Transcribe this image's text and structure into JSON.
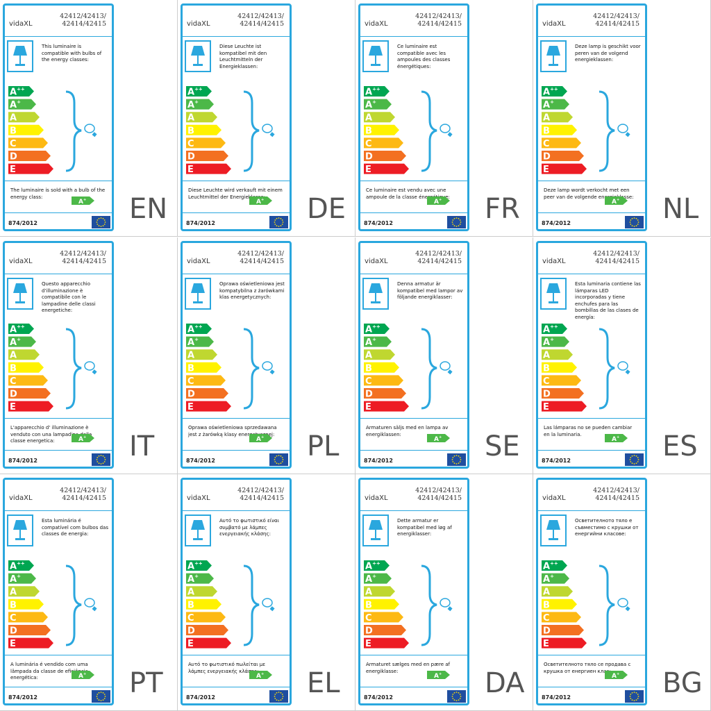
{
  "energy_classes": [
    {
      "letter": "A",
      "sup": "++",
      "color": "#00a651"
    },
    {
      "letter": "A",
      "sup": "+",
      "color": "#4cb848"
    },
    {
      "letter": "A",
      "color": "#bfd730"
    },
    {
      "letter": "B",
      "color": "#fff200"
    },
    {
      "letter": "C",
      "color": "#fdb913"
    },
    {
      "letter": "D",
      "color": "#f37021"
    },
    {
      "letter": "E",
      "color": "#ed1c24"
    }
  ],
  "labels": [
    {
      "code": "EN",
      "brand": "vidaXL",
      "model": [
        "42412/42413/",
        "42414/42415"
      ],
      "compatible_text": "This luminaire is compatible with bulbs of the energy classes:",
      "sold_text": "The luminaire is sold with a bulb of the energy class:",
      "sold_class": {
        "letter": "A",
        "sup": "+"
      },
      "regulation": "874/2012"
    },
    {
      "code": "DE",
      "brand": "vidaXL",
      "model": [
        "42412/42413/",
        "42414/42415"
      ],
      "compatible_text": "Diese Leuchte ist kompatibel mit den Leuchtmitteln der Energieklassen:",
      "sold_text": "Diese Leuchte wird verkauft mit einem Leuchtmittel der Energieklasse:",
      "sold_class": {
        "letter": "A",
        "sup": "+"
      },
      "regulation": "874/2012"
    },
    {
      "code": "FR",
      "brand": "vidaXL",
      "model": [
        "42412/42413/",
        "42414/42415"
      ],
      "compatible_text": "Ce luminaire est compatible avec les ampoules des classes énergétiques:",
      "sold_text": "Ce luminaire est vendu avec une ampoule de la classe énergétique:",
      "sold_class": {
        "letter": "A",
        "sup": "+"
      },
      "regulation": "874/2012"
    },
    {
      "code": "NL",
      "brand": "vidaXL",
      "model": [
        "42412/42413/",
        "42414/42415"
      ],
      "compatible_text": "Deze lamp is geschikt voor peren van de volgend energieklassen:",
      "sold_text": "Deze lamp wordt verkocht met een peer van de volgende energieklasse:",
      "sold_class": {
        "letter": "A",
        "sup": "+"
      },
      "regulation": "874/2012"
    },
    {
      "code": "IT",
      "brand": "vidaXL",
      "model": [
        "42412/42413/",
        "42414/42415"
      ],
      "compatible_text": "Questo apparecchio d'illuminazione è compatibile con le lampadine delle classi energetiche:",
      "sold_text": "L'apparecchio d'  illuminazione è venduto con una lampadina della classe energetica:",
      "sold_class": {
        "letter": "A",
        "sup": "+"
      },
      "regulation": "874/2012"
    },
    {
      "code": "PL",
      "brand": "vidaXL",
      "model": [
        "42412/42413/",
        "42414/42415"
      ],
      "compatible_text": "Oprawa oświetleniowa jest kompatybilna z żarówkami klas energetycznych:",
      "sold_text": "Oprawa oświetleniowa sprzedawana jest z żarówką klasy energetycznej:",
      "sold_class": {
        "letter": "A",
        "sup": "+"
      },
      "regulation": "874/2012"
    },
    {
      "code": "SE",
      "brand": "vidaXL",
      "model": [
        "42412/42413/",
        "42414/42415"
      ],
      "compatible_text": "Denna armatur är kompatibel med lampor av följande energiklasser:",
      "sold_text": "Armaturen säljs med en lampa av energiklassen:",
      "sold_class": {
        "letter": "A",
        "sup": "+"
      },
      "regulation": "874/2012"
    },
    {
      "code": "ES",
      "brand": "vidaXL",
      "model": [
        "42412/42413/",
        "42414/42415"
      ],
      "compatible_text": "Esta luminaria contiene las lámparas LED incorporadas y tiene enchufes para las bombillas de las clases de energía:",
      "sold_text": "Las lámparas no se pueden cambiar en la luminaria.",
      "sold_class": {
        "letter": "A",
        "sup": "+"
      },
      "regulation": "874/2012"
    },
    {
      "code": "PT",
      "brand": "vidaXL",
      "model": [
        "42412/42413/",
        "42414/42415"
      ],
      "compatible_text": "Esta luminária é compatível com bulbos das classes de energia:",
      "sold_text": "A luminária é vendido com uma lâmpada da classe de eficiência energética:",
      "sold_class": {
        "letter": "A",
        "sup": "+"
      },
      "regulation": "874/2012"
    },
    {
      "code": "EL",
      "brand": "vidaXL",
      "model": [
        "42412/42413/",
        "42414/42415"
      ],
      "compatible_text": "Αυτό το φωτιστικό είναι συμβατό με λάμπες ενεργειακής κλάσης:",
      "sold_text": "Αυτό το φωτιστικό πωλείται με λάμπες ενεργειακής κλάσης:",
      "sold_class": {
        "letter": "A",
        "sup": "+"
      },
      "regulation": "874/2012"
    },
    {
      "code": "DA",
      "brand": "vidaXL",
      "model": [
        "42412/42413/",
        "42414/42415"
      ],
      "compatible_text": "Dette armatur er kompatibel med løg af energiklasser:",
      "sold_text": "Armaturet sælges med en pære af energiklasse:",
      "sold_class": {
        "letter": "A",
        "sup": "+"
      },
      "regulation": "874/2012"
    },
    {
      "code": "BG",
      "brand": "vidaXL",
      "model": [
        "42412/42413/",
        "42414/42415"
      ],
      "compatible_text": "Осветителното тяло е съвместимо с крушки от енергийни класове:",
      "sold_text": "Осветителното тяло се продава с крушка от енергиен клас:",
      "sold_class": {
        "letter": "A",
        "sup": "+"
      },
      "regulation": "874/2012"
    }
  ]
}
